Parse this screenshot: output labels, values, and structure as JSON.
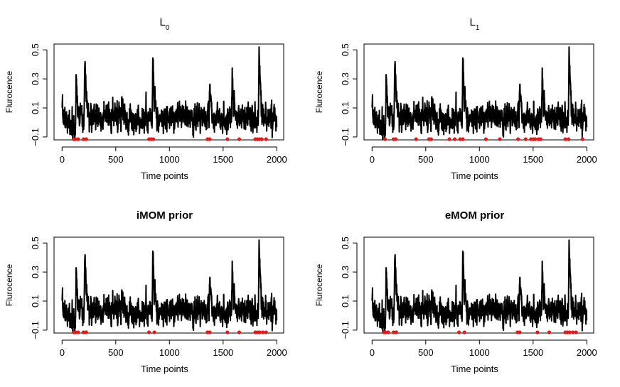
{
  "chart_data": [
    {
      "type": "line",
      "title_main": "L",
      "title_sub": "0",
      "title_bold": false,
      "xlabel": "Time points",
      "ylabel": "Flurocence",
      "xlim": [
        0,
        2000
      ],
      "ylim": [
        -0.12,
        0.54
      ],
      "xticks": [
        "0",
        "500",
        "1000",
        "1500",
        "2000"
      ],
      "yticks": [
        "−0.1",
        "0.1",
        "0.3",
        "0.5"
      ],
      "changepoints": [
        110,
        125,
        150,
        200,
        225,
        810,
        830,
        850,
        1355,
        1375,
        1540,
        1650,
        1800,
        1820,
        1840,
        1860,
        1900
      ]
    },
    {
      "type": "line",
      "title_main": "L",
      "title_sub": "1",
      "title_bold": false,
      "xlabel": "Time points",
      "ylabel": "Flurocence",
      "xlim": [
        0,
        2000
      ],
      "ylim": [
        -0.12,
        0.54
      ],
      "xticks": [
        "0",
        "500",
        "1000",
        "1500",
        "2000"
      ],
      "yticks": [
        "−0.1",
        "0.1",
        "0.3",
        "0.5"
      ],
      "changepoints": [
        120,
        200,
        220,
        410,
        530,
        550,
        720,
        770,
        820,
        845,
        1060,
        1190,
        1360,
        1430,
        1480,
        1500,
        1520,
        1550,
        1570,
        1800,
        1830,
        1960
      ]
    },
    {
      "type": "line",
      "title_main": "iMOM prior",
      "title_sub": "",
      "title_bold": true,
      "xlabel": "Time points",
      "ylabel": "Flurocence",
      "xlim": [
        0,
        2000
      ],
      "ylim": [
        -0.12,
        0.54
      ],
      "xticks": [
        "0",
        "500",
        "1000",
        "1500",
        "2000"
      ],
      "yticks": [
        "−0.1",
        "0.1",
        "0.3",
        "0.5"
      ],
      "changepoints": [
        110,
        125,
        150,
        200,
        225,
        810,
        860,
        1355,
        1375,
        1540,
        1650,
        1800,
        1820,
        1840,
        1870,
        1900
      ]
    },
    {
      "type": "line",
      "title_main": "eMOM prior",
      "title_sub": "",
      "title_bold": true,
      "xlabel": "Time points",
      "ylabel": "Flurocence",
      "xlim": [
        0,
        2000
      ],
      "ylim": [
        -0.12,
        0.54
      ],
      "xticks": [
        "0",
        "500",
        "1000",
        "1500",
        "2000"
      ],
      "yticks": [
        "−0.1",
        "0.1",
        "0.3",
        "0.5"
      ],
      "changepoints": [
        110,
        125,
        150,
        200,
        225,
        810,
        860,
        1355,
        1375,
        1540,
        1650,
        1800,
        1820,
        1840,
        1870,
        1900
      ]
    }
  ],
  "signal": {
    "n": 2000,
    "baseline": 0.03,
    "noise": 0.045,
    "seed": 7,
    "peaks": [
      {
        "t": 130,
        "h": 0.34
      },
      {
        "t": 210,
        "h": 0.38
      },
      {
        "t": 555,
        "h": 0.12
      },
      {
        "t": 845,
        "h": 0.44
      },
      {
        "t": 1375,
        "h": 0.25
      },
      {
        "t": 1585,
        "h": 0.34
      },
      {
        "t": 1835,
        "h": 0.48
      }
    ]
  },
  "colors": {
    "line": "#000000",
    "changepoint": "#e31a1c",
    "axis": "#000000"
  }
}
